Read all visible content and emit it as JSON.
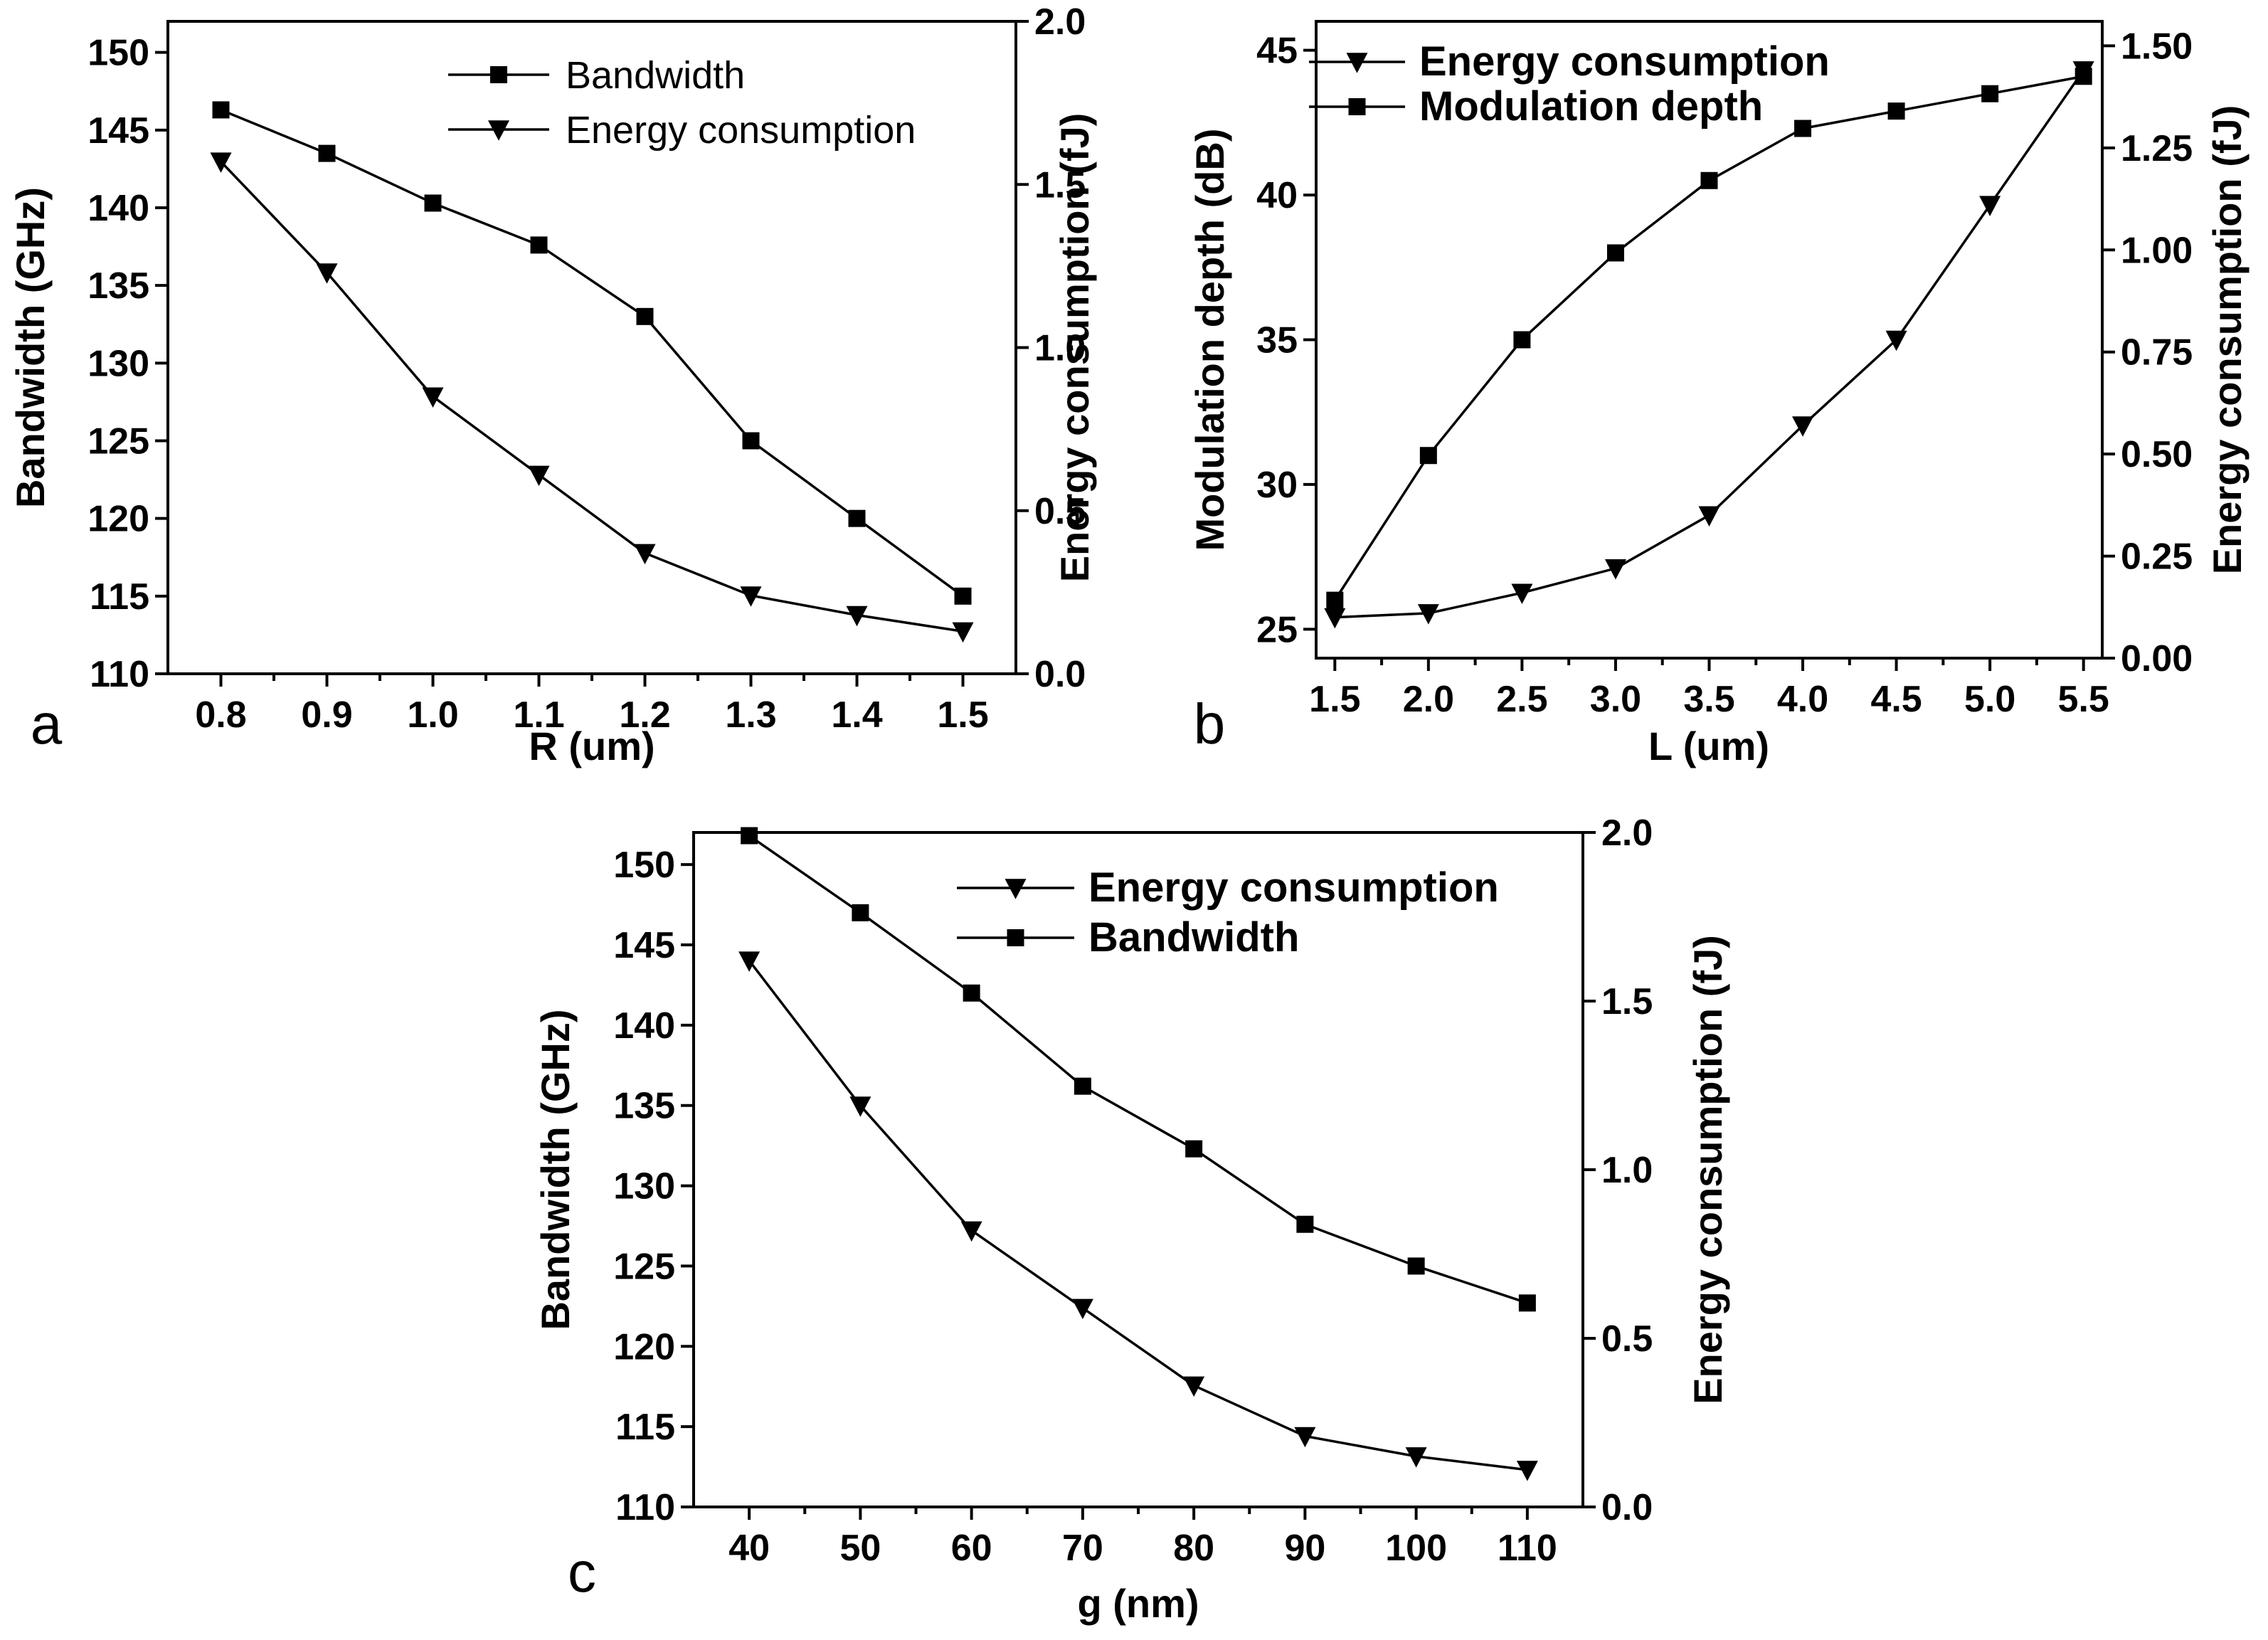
{
  "figure": {
    "panels": [
      "a",
      "b",
      "c"
    ]
  },
  "chart_data": [
    {
      "panel": "a",
      "type": "line",
      "xlabel": "R (um)",
      "ylabel_left": "Bandwidth (GHz)",
      "ylabel_right": "Energy consumption (fJ)",
      "xlim": [
        0.75,
        1.55
      ],
      "ylim_left": [
        110,
        152
      ],
      "ylim_right": [
        0,
        2.0
      ],
      "x_ticks": [
        "0.8",
        "0.9",
        "1.0",
        "1.1",
        "1.2",
        "1.3",
        "1.4",
        "1.5"
      ],
      "y_left_ticks": [
        "110",
        "115",
        "120",
        "125",
        "130",
        "135",
        "140",
        "145",
        "150"
      ],
      "y_right_ticks": [
        "0.0",
        "0.5",
        "1.0",
        "1.5",
        "2.0"
      ],
      "legend_position": "top-right",
      "series": [
        {
          "name": "Bandwidth",
          "marker": "square",
          "axis": "left",
          "x": [
            0.8,
            0.9,
            1.0,
            1.1,
            1.2,
            1.3,
            1.4,
            1.5
          ],
          "values": [
            146.3,
            143.5,
            140.3,
            137.6,
            133.0,
            125.0,
            120.0,
            115.0
          ]
        },
        {
          "name": "Energy consumption",
          "marker": "triangle-down",
          "axis": "right",
          "x": [
            0.8,
            0.9,
            1.0,
            1.1,
            1.2,
            1.3,
            1.4,
            1.5
          ],
          "values": [
            1.57,
            1.23,
            0.85,
            0.61,
            0.37,
            0.24,
            0.18,
            0.13
          ]
        }
      ]
    },
    {
      "panel": "b",
      "type": "line",
      "xlabel": "L (um)",
      "ylabel_left": "Modulation depth (dB)",
      "ylabel_right": "Energy consumption (fJ)",
      "xlim": [
        1.4,
        5.6
      ],
      "ylim_left": [
        24,
        46
      ],
      "ylim_right": [
        0,
        1.56
      ],
      "x_ticks": [
        "1.5",
        "2.0",
        "2.5",
        "3.0",
        "3.5",
        "4.0",
        "4.5",
        "5.0",
        "5.5"
      ],
      "y_left_ticks": [
        "25",
        "30",
        "35",
        "40",
        "45"
      ],
      "y_right_ticks": [
        "0.00",
        "0.25",
        "0.50",
        "0.75",
        "1.00",
        "1.25",
        "1.50"
      ],
      "legend_position": "top-left",
      "series": [
        {
          "name": "Energy consumption",
          "marker": "triangle-down",
          "axis": "right",
          "x": [
            1.5,
            2.0,
            2.5,
            3.0,
            3.5,
            4.0,
            4.5,
            5.0,
            5.5
          ],
          "values": [
            0.1,
            0.11,
            0.16,
            0.22,
            0.35,
            0.57,
            0.78,
            1.11,
            1.44
          ]
        },
        {
          "name": "Modulation depth",
          "marker": "square",
          "axis": "left",
          "x": [
            1.5,
            2.0,
            2.5,
            3.0,
            3.5,
            4.0,
            4.5,
            5.0,
            5.5
          ],
          "values": [
            26.0,
            31.0,
            35.0,
            38.0,
            40.5,
            42.3,
            42.9,
            43.5,
            44.1
          ]
        }
      ]
    },
    {
      "panel": "c",
      "type": "line",
      "xlabel": "g (nm)",
      "ylabel_left": "Bandwidth (GHz)",
      "ylabel_right": "Energy consumption (fJ)",
      "xlim": [
        35,
        115
      ],
      "ylim_left": [
        110,
        152
      ],
      "ylim_right": [
        0,
        2.0
      ],
      "x_ticks": [
        "40",
        "50",
        "60",
        "70",
        "80",
        "90",
        "100",
        "110"
      ],
      "y_left_ticks": [
        "110",
        "115",
        "120",
        "125",
        "130",
        "135",
        "140",
        "145",
        "150"
      ],
      "y_right_ticks": [
        "0.0",
        "0.5",
        "1.0",
        "1.5",
        "2.0"
      ],
      "legend_position": "top-right",
      "series": [
        {
          "name": "Energy consumption",
          "marker": "triangle-down",
          "axis": "right",
          "x": [
            40,
            50,
            60,
            70,
            80,
            90,
            100,
            110
          ],
          "values": [
            1.62,
            1.19,
            0.82,
            0.59,
            0.36,
            0.21,
            0.15,
            0.11
          ]
        },
        {
          "name": "Bandwidth",
          "marker": "square",
          "axis": "left",
          "x": [
            40,
            50,
            60,
            70,
            80,
            90,
            100,
            110
          ],
          "values": [
            151.8,
            147.0,
            142.0,
            136.2,
            132.3,
            127.6,
            125.0,
            122.7
          ]
        }
      ]
    }
  ]
}
